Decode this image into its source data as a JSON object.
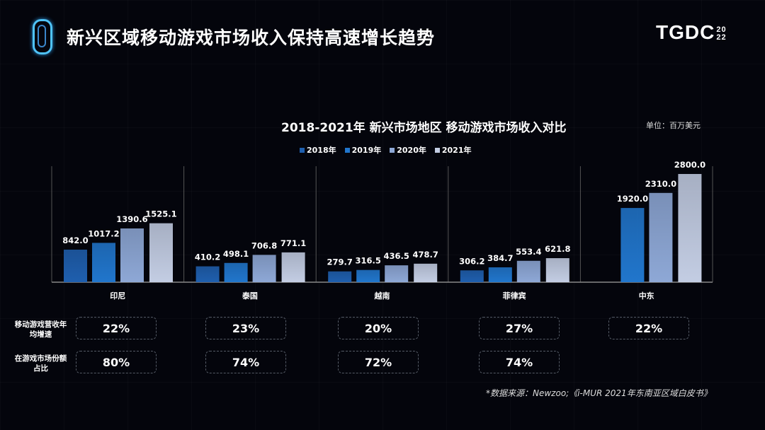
{
  "header": {
    "title": "新兴区域移动游戏市场收入保持高速增长趋势",
    "brand": "TGDC",
    "brand_year_top": "20",
    "brand_year_bottom": "22"
  },
  "chart_data": {
    "type": "bar",
    "title": "2018-2021年 新兴市场地区 移动游戏市场收入对比",
    "unit": "单位：百万美元",
    "categories": [
      "印尼",
      "泰国",
      "越南",
      "菲律宾",
      "中东"
    ],
    "series": [
      {
        "name": "2018年",
        "color": "#1f5fae",
        "values": [
          842.0,
          410.2,
          279.7,
          306.2,
          null
        ]
      },
      {
        "name": "2019年",
        "color": "#2176cc",
        "values": [
          1017.2,
          498.1,
          316.5,
          384.7,
          1920.0
        ]
      },
      {
        "name": "2020年",
        "color": "#8ea8d6",
        "values": [
          1390.6,
          706.8,
          436.5,
          553.4,
          2310.0
        ]
      },
      {
        "name": "2021年",
        "color": "#c3cde3",
        "values": [
          1525.1,
          771.1,
          478.7,
          621.8,
          2800.0
        ]
      }
    ],
    "ylim": [
      0,
      2800
    ],
    "grid": false,
    "legend": "top"
  },
  "table": {
    "rows": [
      {
        "label": "移动游戏营收年均增速",
        "values": [
          "22%",
          "23%",
          "20%",
          "27%",
          "22%"
        ]
      },
      {
        "label": "在游戏市场份额占比",
        "values": [
          "80%",
          "74%",
          "72%",
          "74%",
          ""
        ]
      }
    ]
  },
  "source": "*数据来源：Newzoo;《i-MUR 2021年东南亚区域白皮书》"
}
